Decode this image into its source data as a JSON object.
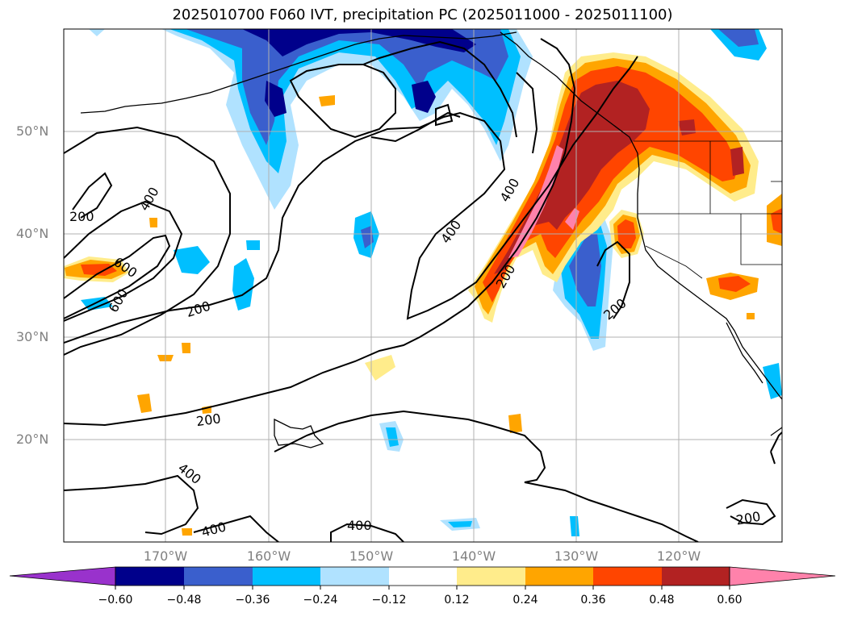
{
  "title": "2025010700 F060 IVT, precipitation PC (2025011000 - 2025011100)",
  "lat_labels": [
    "50°N",
    "40°N",
    "30°N",
    "20°N"
  ],
  "lon_labels": [
    "170°W",
    "160°W",
    "150°W",
    "140°W",
    "130°W",
    "120°W"
  ],
  "colorbar": {
    "ticks": [
      "−0.60",
      "−0.48",
      "−0.36",
      "−0.24",
      "−0.12",
      "0.12",
      "0.24",
      "0.36",
      "0.48",
      "0.60"
    ],
    "colors": [
      "#9932cc",
      "#00008b",
      "#3a5fcd",
      "#00bfff",
      "#b0e2ff",
      "#ffffff",
      "#ffec8b",
      "#ffa500",
      "#ff4500",
      "#b22222",
      "#ff82ab"
    ]
  },
  "contour_labels": [
    "200",
    "400",
    "600",
    "600",
    "200",
    "400",
    "200",
    "400",
    "600",
    "200",
    "200",
    "400",
    "400",
    "400",
    "200"
  ],
  "colors": {
    "land_outline": "#000000",
    "grid": "#b0b0b0"
  }
}
